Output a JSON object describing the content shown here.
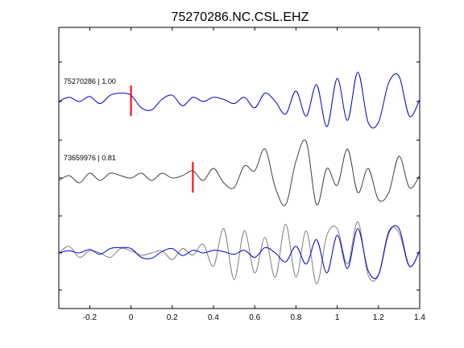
{
  "chart_data": {
    "type": "line",
    "title": "75270286.NC.CSL.EHZ",
    "xlabel": "",
    "ylabel": "",
    "xlim": [
      -0.35,
      1.4
    ],
    "x_ticks": [
      -0.2,
      0,
      0.2,
      0.4,
      0.6,
      0.8,
      1,
      1.2,
      1.4
    ],
    "x_tick_labels": [
      "-0.2",
      "0",
      "0.2",
      "0.4",
      "0.6",
      "0.8",
      "1",
      "1.2",
      "1.4"
    ],
    "grid": false,
    "colors": {
      "reference": "#0000cc",
      "correlated": "#404040",
      "overlay": "#808080",
      "pick": "#ff0000"
    },
    "traces": [
      {
        "label": "75270286 | 1.00",
        "color": "#0000cc",
        "pick_time": 0.0,
        "t": [
          -0.35,
          -0.3,
          -0.25,
          -0.2,
          -0.15,
          -0.1,
          -0.05,
          0.0,
          0.05,
          0.1,
          0.15,
          0.2,
          0.25,
          0.3,
          0.35,
          0.4,
          0.45,
          0.5,
          0.55,
          0.6,
          0.65,
          0.7,
          0.75,
          0.8,
          0.85,
          0.9,
          0.95,
          1.0,
          1.05,
          1.1,
          1.15,
          1.2,
          1.25,
          1.3,
          1.35,
          1.4
        ],
        "a": [
          0.0,
          0.1,
          0.0,
          0.12,
          -0.05,
          0.15,
          0.2,
          0.15,
          -0.15,
          -0.2,
          0.05,
          0.15,
          -0.1,
          0.1,
          0.0,
          0.1,
          0.05,
          -0.05,
          0.1,
          -0.15,
          0.2,
          0.0,
          -0.3,
          0.25,
          -0.35,
          0.4,
          -0.6,
          0.55,
          -0.45,
          0.7,
          -0.5,
          -0.5,
          0.45,
          0.6,
          -0.35,
          0.05
        ]
      },
      {
        "label": "73659976 | 0.81",
        "color": "#404040",
        "pick_time": 0.3,
        "t": [
          -0.35,
          -0.3,
          -0.25,
          -0.2,
          -0.15,
          -0.1,
          -0.05,
          0.0,
          0.05,
          0.1,
          0.15,
          0.2,
          0.25,
          0.3,
          0.35,
          0.4,
          0.45,
          0.5,
          0.55,
          0.6,
          0.65,
          0.7,
          0.75,
          0.8,
          0.85,
          0.9,
          0.95,
          1.0,
          1.05,
          1.1,
          1.15,
          1.2,
          1.25,
          1.3,
          1.35,
          1.4
        ],
        "a": [
          -0.05,
          0.05,
          -0.1,
          0.1,
          -0.05,
          0.1,
          0.05,
          0.0,
          0.1,
          -0.05,
          0.1,
          0.0,
          0.05,
          0.15,
          -0.05,
          0.2,
          -0.1,
          -0.2,
          0.25,
          0.15,
          0.6,
          -0.2,
          -0.55,
          0.35,
          0.75,
          -0.55,
          0.2,
          -0.15,
          0.6,
          -0.3,
          0.2,
          -0.45,
          -0.3,
          0.45,
          -0.2,
          0.05
        ]
      }
    ],
    "overlay": {
      "series": [
        {
          "color": "#808080",
          "a": [
            0.0,
            0.15,
            -0.1,
            0.05,
            0.0,
            -0.1,
            0.1,
            0.05,
            -0.05,
            0.0,
            0.05,
            -0.15,
            0.1,
            -0.05,
            0.2,
            -0.3,
            0.55,
            -0.6,
            0.5,
            -0.45,
            0.35,
            -0.55,
            0.65,
            -0.55,
            0.5,
            -0.7,
            0.4,
            0.55,
            -0.25,
            0.7,
            -0.5,
            -0.5,
            0.5,
            0.45,
            -0.3,
            0.05
          ]
        },
        {
          "color": "#0000cc",
          "a": [
            0.0,
            0.05,
            0.0,
            0.08,
            -0.03,
            0.1,
            0.12,
            0.1,
            -0.1,
            -0.12,
            0.03,
            0.1,
            -0.06,
            0.06,
            0.0,
            0.06,
            0.03,
            -0.03,
            0.06,
            -0.1,
            0.12,
            0.0,
            -0.2,
            0.15,
            -0.25,
            0.3,
            -0.45,
            0.4,
            -0.35,
            0.55,
            -0.4,
            -0.5,
            0.45,
            0.55,
            -0.3,
            0.05
          ]
        }
      ]
    }
  }
}
